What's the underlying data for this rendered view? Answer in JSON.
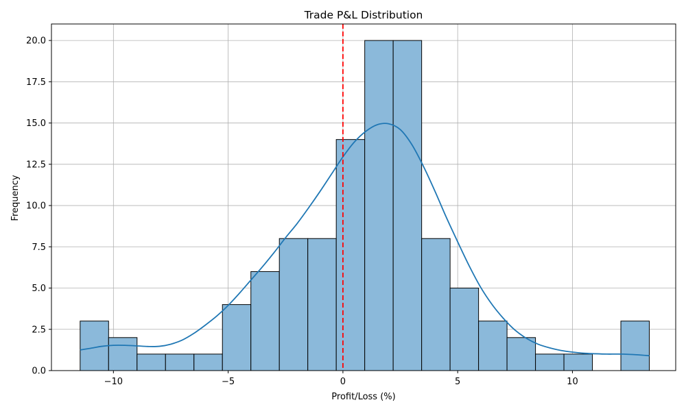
{
  "chart_data": {
    "type": "bar",
    "title": "Trade P&L Distribution",
    "xlabel": "Profit/Loss (%)",
    "ylabel": "Frequency",
    "xlim": [
      -12.7,
      14.5
    ],
    "ylim": [
      0,
      21
    ],
    "xticks": [
      -10,
      -5,
      0,
      5,
      10
    ],
    "xtick_labels": [
      "−10",
      "−5",
      "0",
      "5",
      "10"
    ],
    "yticks": [
      0,
      2.5,
      5,
      7.5,
      10,
      12.5,
      15,
      17.5,
      20
    ],
    "ytick_labels": [
      "0.0",
      "2.5",
      "5.0",
      "7.5",
      "10.0",
      "12.5",
      "15.0",
      "17.5",
      "20.0"
    ],
    "grid": true,
    "bin_edges": [
      -11.45,
      -10.21,
      -8.97,
      -7.73,
      -6.49,
      -5.25,
      -4.01,
      -2.77,
      -1.53,
      -0.29,
      0.95,
      2.19,
      3.43,
      4.67,
      5.91,
      7.15,
      8.39,
      9.63,
      10.87,
      12.11,
      13.35
    ],
    "counts": [
      3,
      2,
      1,
      1,
      1,
      4,
      6,
      8,
      8,
      14,
      20,
      20,
      8,
      5,
      3,
      2,
      1,
      1,
      0,
      3
    ],
    "kde": {
      "x": [
        -11.45,
        -11.0,
        -10.5,
        -10.0,
        -9.5,
        -9.0,
        -8.5,
        -8.0,
        -7.5,
        -7.0,
        -6.5,
        -6.0,
        -5.5,
        -5.0,
        -4.5,
        -4.0,
        -3.5,
        -3.0,
        -2.5,
        -2.0,
        -1.5,
        -1.0,
        -0.5,
        0.0,
        0.5,
        1.0,
        1.5,
        2.0,
        2.5,
        3.0,
        3.5,
        4.0,
        4.5,
        5.0,
        5.5,
        6.0,
        6.5,
        7.0,
        7.5,
        8.0,
        8.5,
        9.0,
        9.5,
        10.0,
        10.5,
        11.0,
        11.5,
        12.0,
        12.5,
        13.0,
        13.35
      ],
      "y": [
        1.25,
        1.35,
        1.47,
        1.53,
        1.53,
        1.5,
        1.46,
        1.47,
        1.6,
        1.85,
        2.25,
        2.75,
        3.3,
        3.95,
        4.7,
        5.5,
        6.3,
        7.15,
        8.05,
        8.9,
        9.85,
        10.85,
        11.9,
        12.95,
        13.85,
        14.5,
        14.9,
        14.95,
        14.6,
        13.7,
        12.4,
        10.9,
        9.3,
        7.8,
        6.35,
        5.05,
        4.0,
        3.15,
        2.45,
        1.95,
        1.6,
        1.38,
        1.22,
        1.12,
        1.05,
        1.02,
        1.0,
        1.0,
        0.98,
        0.94,
        0.9
      ]
    },
    "reference_line": {
      "x": 0,
      "color": "#ff0000",
      "style": "dashed"
    },
    "colors": {
      "bar_fill": "#8bb9da",
      "bar_edge": "#000000",
      "kde_line": "#1f77b4",
      "grid": "#b0b0b0"
    }
  }
}
